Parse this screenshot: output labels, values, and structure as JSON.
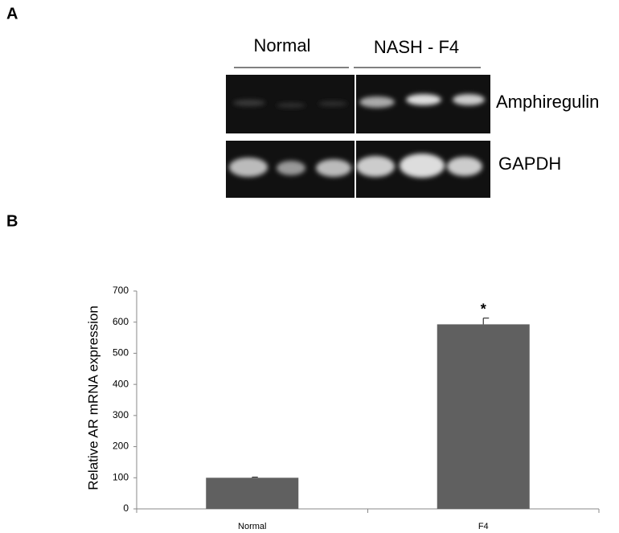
{
  "panel_a": {
    "label": "A",
    "group_labels": [
      "Normal",
      "NASH - F4"
    ],
    "band_labels": [
      "Amphiregulin",
      "GAPDH"
    ]
  },
  "chart_data": {
    "type": "bar",
    "panel_label": "B",
    "y_label": "Relative AR mRNA expression",
    "categories": [
      "Normal",
      "F4"
    ],
    "values": [
      100,
      593
    ],
    "errors": [
      2,
      20
    ],
    "annotations": [
      null,
      "*"
    ],
    "color": "#606060",
    "ylim": [
      0,
      700
    ],
    "yticks": [
      0,
      100,
      200,
      300,
      400,
      500,
      600,
      700
    ],
    "grid": false
  }
}
